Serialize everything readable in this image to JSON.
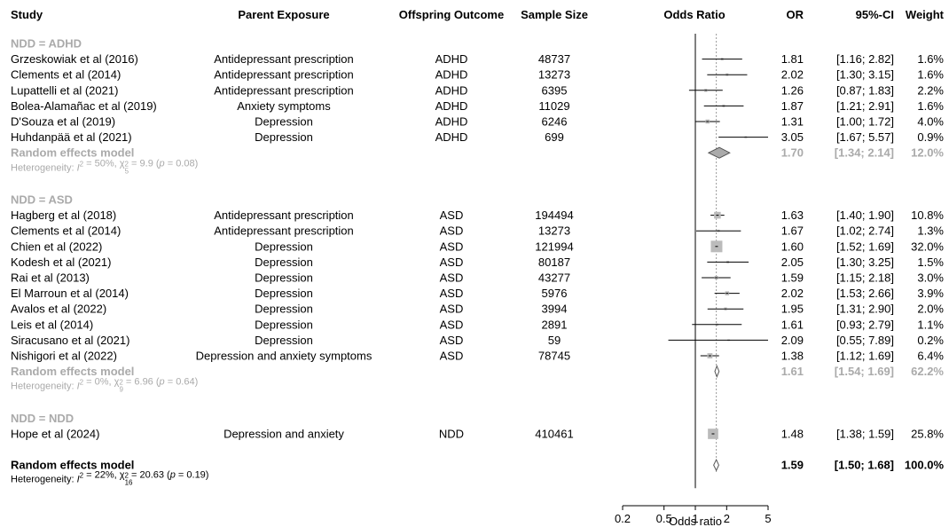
{
  "headers": {
    "study": "Study",
    "parent_exposure": "Parent Exposure",
    "offspring_outcome": "Offspring Outcome",
    "sample_size": "Sample Size",
    "odds_ratio": "Odds Ratio",
    "or": "OR",
    "ci": "95%-CI",
    "weight": "Weight"
  },
  "colors": {
    "text": "#000000",
    "subgroup_gray": "#aaaaaa",
    "box_gray": "#bbbbbb",
    "diamond_gray": "#aaaaaa",
    "reference_line": "#999999"
  },
  "chart_data": {
    "type": "forest",
    "xlabel": "Odds ratio",
    "x_scale": "log",
    "xlim": [
      0.2,
      5
    ],
    "xticks": [
      0.2,
      0.5,
      1,
      2,
      5
    ],
    "xtick_labels": [
      "0.2",
      "0.5",
      "1",
      "2",
      "5"
    ],
    "null_line": 1,
    "overall_reference_line": 1.59,
    "rows": [
      {
        "kind": "group",
        "label": "NDD = ADHD"
      },
      {
        "kind": "study",
        "study": "Grzeskowiak et al (2016)",
        "exposure": "Antidepressant prescription",
        "outcome": "ADHD",
        "n": "48737",
        "or": 1.81,
        "lo": 1.16,
        "hi": 2.82,
        "or_text": "1.81",
        "ci_text": "[1.16; 2.82]",
        "weight": "1.6%",
        "w": 1.6
      },
      {
        "kind": "study",
        "study": "Clements et al (2014)",
        "exposure": "Antidepressant prescription",
        "outcome": "ADHD",
        "n": "13273",
        "or": 2.02,
        "lo": 1.3,
        "hi": 3.15,
        "or_text": "2.02",
        "ci_text": "[1.30; 3.15]",
        "weight": "1.6%",
        "w": 1.6
      },
      {
        "kind": "study",
        "study": "Lupattelli et al (2021)",
        "exposure": "Antidepressant prescription",
        "outcome": "ADHD",
        "n": "6395",
        "or": 1.26,
        "lo": 0.87,
        "hi": 1.83,
        "or_text": "1.26",
        "ci_text": "[0.87; 1.83]",
        "weight": "2.2%",
        "w": 2.2
      },
      {
        "kind": "study",
        "study": "Bolea-Alamañac et al (2019)",
        "exposure": "Anxiety symptoms",
        "outcome": "ADHD",
        "n": "11029",
        "or": 1.87,
        "lo": 1.21,
        "hi": 2.91,
        "or_text": "1.87",
        "ci_text": "[1.21; 2.91]",
        "weight": "1.6%",
        "w": 1.6
      },
      {
        "kind": "study",
        "study": "D'Souza et al (2019)",
        "exposure": "Depression",
        "outcome": "ADHD",
        "n": "6246",
        "or": 1.31,
        "lo": 1.0,
        "hi": 1.72,
        "or_text": "1.31",
        "ci_text": "[1.00; 1.72]",
        "weight": "4.0%",
        "w": 4.0
      },
      {
        "kind": "study",
        "study": "Huhdanpää et al (2021)",
        "exposure": "Depression",
        "outcome": "ADHD",
        "n": "699",
        "or": 3.05,
        "lo": 1.67,
        "hi": 5.57,
        "or_text": "3.05",
        "ci_text": "[1.67; 5.57]",
        "weight": "0.9%",
        "w": 0.9
      },
      {
        "kind": "random",
        "label": "Random effects model",
        "or": 1.7,
        "lo": 1.34,
        "hi": 2.14,
        "or_text": "1.70",
        "ci_text": "[1.34; 2.14]",
        "weight": "12.0%",
        "big": true
      },
      {
        "kind": "het",
        "i2": "50%",
        "df": "5",
        "chi": "9.9",
        "p": "0.08"
      },
      {
        "kind": "blank"
      },
      {
        "kind": "group",
        "label": "NDD = ASD"
      },
      {
        "kind": "study",
        "study": "Hagberg et al (2018)",
        "exposure": "Antidepressant prescription",
        "outcome": "ASD",
        "n": "194494",
        "or": 1.63,
        "lo": 1.4,
        "hi": 1.9,
        "or_text": "1.63",
        "ci_text": "[1.40; 1.90]",
        "weight": "10.8%",
        "w": 10.8
      },
      {
        "kind": "study",
        "study": "Clements et al (2014)",
        "exposure": "Antidepressant prescription",
        "outcome": "ASD",
        "n": "13273",
        "or": 1.67,
        "lo": 1.02,
        "hi": 2.74,
        "or_text": "1.67",
        "ci_text": "[1.02; 2.74]",
        "weight": "1.3%",
        "w": 1.3
      },
      {
        "kind": "study",
        "study": "Chien et al (2022)",
        "exposure": "Depression",
        "outcome": "ASD",
        "n": "121994",
        "or": 1.6,
        "lo": 1.52,
        "hi": 1.69,
        "or_text": "1.60",
        "ci_text": "[1.52; 1.69]",
        "weight": "32.0%",
        "w": 32.0
      },
      {
        "kind": "study",
        "study": "Kodesh et al (2021)",
        "exposure": "Depression",
        "outcome": "ASD",
        "n": "80187",
        "or": 2.05,
        "lo": 1.3,
        "hi": 3.25,
        "or_text": "2.05",
        "ci_text": "[1.30; 3.25]",
        "weight": "1.5%",
        "w": 1.5
      },
      {
        "kind": "study",
        "study": "Rai et al (2013)",
        "exposure": "Depression",
        "outcome": "ASD",
        "n": "43277",
        "or": 1.59,
        "lo": 1.15,
        "hi": 2.18,
        "or_text": "1.59",
        "ci_text": "[1.15; 2.18]",
        "weight": "3.0%",
        "w": 3.0
      },
      {
        "kind": "study",
        "study": "El Marroun et al (2014)",
        "exposure": "Depression",
        "outcome": "ASD",
        "n": "5976",
        "or": 2.02,
        "lo": 1.53,
        "hi": 2.66,
        "or_text": "2.02",
        "ci_text": "[1.53; 2.66]",
        "weight": "3.9%",
        "w": 3.9
      },
      {
        "kind": "study",
        "study": "Avalos et al (2022)",
        "exposure": "Depression",
        "outcome": "ASD",
        "n": "3994",
        "or": 1.95,
        "lo": 1.31,
        "hi": 2.9,
        "or_text": "1.95",
        "ci_text": "[1.31; 2.90]",
        "weight": "2.0%",
        "w": 2.0
      },
      {
        "kind": "study",
        "study": "Leis et al (2014)",
        "exposure": "Depression",
        "outcome": "ASD",
        "n": "2891",
        "or": 1.61,
        "lo": 0.93,
        "hi": 2.79,
        "or_text": "1.61",
        "ci_text": "[0.93; 2.79]",
        "weight": "1.1%",
        "w": 1.1
      },
      {
        "kind": "study",
        "study": "Siracusano et al (2021)",
        "exposure": "Depression",
        "outcome": "ASD",
        "n": "59",
        "or": 2.09,
        "lo": 0.55,
        "hi": 7.89,
        "or_text": "2.09",
        "ci_text": "[0.55; 7.89]",
        "weight": "0.2%",
        "w": 0.2
      },
      {
        "kind": "study",
        "study": "Nishigori et al (2022)",
        "exposure": "Depression and anxiety symptoms",
        "outcome": "ASD",
        "n": "78745",
        "or": 1.38,
        "lo": 1.12,
        "hi": 1.69,
        "or_text": "1.38",
        "ci_text": "[1.12; 1.69]",
        "weight": "6.4%",
        "w": 6.4
      },
      {
        "kind": "random",
        "label": "Random effects model",
        "or": 1.61,
        "lo": 1.54,
        "hi": 1.69,
        "or_text": "1.61",
        "ci_text": "[1.54; 1.69]",
        "weight": "62.2%",
        "big": false
      },
      {
        "kind": "het",
        "i2": "0%",
        "df": "9",
        "chi": "6.96",
        "p": "0.64"
      },
      {
        "kind": "blank"
      },
      {
        "kind": "group",
        "label": "NDD = NDD"
      },
      {
        "kind": "study",
        "study": "Hope et al (2024)",
        "exposure": "Depression and anxiety",
        "outcome": "NDD",
        "n": "410461",
        "or": 1.48,
        "lo": 1.38,
        "hi": 1.59,
        "or_text": "1.48",
        "ci_text": "[1.38; 1.59]",
        "weight": "25.8%",
        "w": 25.8
      },
      {
        "kind": "blank"
      },
      {
        "kind": "overall",
        "label": "Random effects model",
        "or": 1.59,
        "lo": 1.5,
        "hi": 1.68,
        "or_text": "1.59",
        "ci_text": "[1.50; 1.68]",
        "weight": "100.0%"
      },
      {
        "kind": "hetall",
        "i2": "22%",
        "df": "16",
        "chi": "20.63",
        "p": "0.19"
      }
    ]
  }
}
